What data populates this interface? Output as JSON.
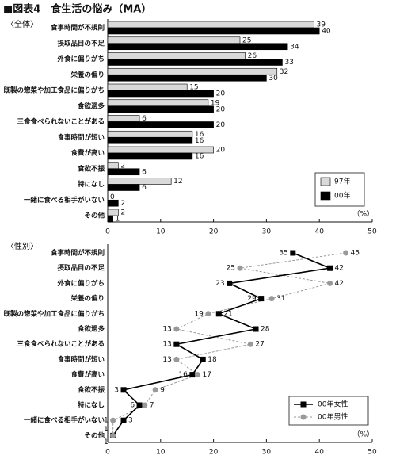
{
  "chart_data": [
    {
      "type": "bar",
      "orientation": "horizontal",
      "title": "■図表4　食生活の悩み（MA）",
      "subtitle": "〈全体〉",
      "unit": "（%）",
      "categories": [
        "食事時間が不規則",
        "摂取品目の不足",
        "外食に偏りがち",
        "栄養の偏り",
        "既製の惣菜や加工食品に偏りがち",
        "食欲過多",
        "三食食べられないことがある",
        "食事時間が短い",
        "食費が高い",
        "食欲不振",
        "特になし",
        "一緒に食べる相手がいない",
        "その他"
      ],
      "series": [
        {
          "name": "97年",
          "color": "#d9d9d9",
          "values": [
            39,
            25,
            26,
            32,
            15,
            19,
            6,
            16,
            20,
            2,
            12,
            0,
            2
          ]
        },
        {
          "name": "00年",
          "color": "#000000",
          "values": [
            40,
            34,
            33,
            30,
            20,
            20,
            20,
            16,
            16,
            6,
            6,
            2,
            1
          ]
        }
      ],
      "xlim": [
        0,
        50
      ],
      "xticks": [
        0,
        10,
        20,
        30,
        40,
        50
      ],
      "legend": "bottom-right"
    },
    {
      "type": "line",
      "orientation": "horizontal",
      "subtitle": "〈性別〉",
      "unit": "（%）",
      "categories": [
        "食事時間が不規則",
        "摂取品目の不足",
        "外食に偏りがち",
        "栄養の偏り",
        "既製の惣菜や加工食品に偏りがち",
        "食欲過多",
        "三食食べられないことがある",
        "食事時間が短い",
        "食費が高い",
        "食欲不振",
        "特になし",
        "一緒に食べる相手がいない",
        "その他"
      ],
      "series": [
        {
          "name": "00年女性",
          "color": "#000000",
          "marker": "square",
          "dashed": false,
          "values": [
            35,
            42,
            23,
            29,
            21,
            28,
            13,
            18,
            16,
            3,
            6,
            3,
            1
          ]
        },
        {
          "name": "00年男性",
          "color": "#999999",
          "marker": "circle",
          "dashed": true,
          "values": [
            45,
            25,
            42,
            31,
            19,
            13,
            27,
            13,
            17,
            9,
            7,
            1,
            1
          ]
        }
      ],
      "xlim": [
        0,
        50
      ],
      "xticks": [
        0,
        10,
        20,
        30,
        40,
        50
      ],
      "legend": "bottom-right"
    }
  ]
}
